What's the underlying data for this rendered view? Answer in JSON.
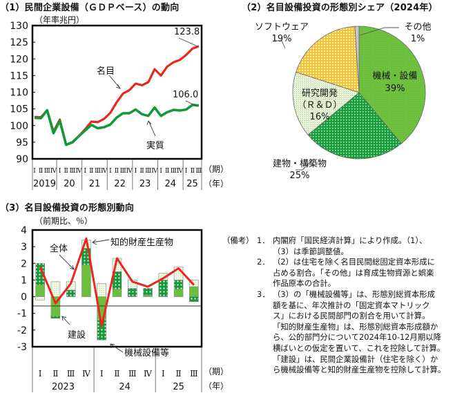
{
  "panel1": {
    "title": "（1）民間企業設備（ＧＤＰベース）の動向",
    "unit": "（年率兆円）",
    "period_label": "（期）",
    "year_label": "（年）",
    "quarter_ticks": "Ⅰ ⅡⅢⅣ",
    "labels": {
      "nominal": "名目",
      "real": "実質",
      "nominal_end": "123.8",
      "real_end": "106.0"
    }
  },
  "panel2": {
    "title": "（2）名目設備投資の形態別シェア（2024年）",
    "labels": {
      "machinery": "機械・設備",
      "machinery_pct": "39%",
      "construction": "建物・構築物",
      "construction_pct": "25%",
      "rd_1": "研究開発",
      "rd_2": "（Ｒ＆Ｄ）",
      "rd_pct": "16%",
      "software": "ソフトウェア",
      "software_pct": "19%",
      "other": "その他",
      "other_pct": "1%"
    }
  },
  "panel3": {
    "title": "（3）名目設備投資の形態別動向",
    "unit": "（前期比、％）",
    "period_label": "（期）",
    "year_label": "（年）",
    "labels": {
      "total": "全体",
      "ip": "知的財産生産物",
      "construction": "建設",
      "machinery": "機械設備等"
    }
  },
  "notes": {
    "lead": "（備考）",
    "items": [
      {
        "num": "1．",
        "lines": [
          "内閣府「国民経済計算」により作成。（1）、",
          "（3）は季節調整値。"
        ]
      },
      {
        "num": "2．",
        "lines": [
          "（2）は住宅を除く名目民間総固定資本形成に",
          "占める割合。「その他」は育成生物資源と娯楽",
          "作品原本の合計。"
        ]
      },
      {
        "num": "3．",
        "lines": [
          "（3）の「機械設備等」は、形態別総資本形成",
          "額を基に、年次推計の「固定資本マトリック",
          "ス」における民間部門の割合を用いて計算。",
          "「知的財産生産物」は、形態別総資本形成額か",
          "ら、公的部門分について2024年10-12月期以降",
          "横ばいとの仮定を置いて、これを控除して計算。",
          "「建設」は、民間企業設備計（住宅を除く）か",
          "ら機械設備等と知的財産生産物を控除して計算。"
        ]
      }
    ]
  },
  "colors": {
    "nominal": "#e8281e",
    "real": "#13993a",
    "machinery": "#6cbf3c",
    "construction": "#1a9e3d",
    "rd": "#dcefc6",
    "software": "#f7c22c",
    "other": "#c8c8c8",
    "total_line": "#e8281e"
  },
  "chart_data": [
    {
      "type": "line",
      "title": "（1）民間企業設備（ＧＤＰベース）の動向",
      "ylabel": "（年率兆円）",
      "xlabel": "（期）（年）",
      "ylim": [
        90,
        130
      ],
      "yticks": [
        90,
        95,
        100,
        105,
        110,
        115,
        120,
        125,
        130
      ],
      "x_groups": [
        "2019",
        "20",
        "21",
        "22",
        "23",
        "24",
        "25"
      ],
      "x": [
        "2019Q1",
        "2019Q2",
        "2019Q3",
        "2019Q4",
        "2020Q1",
        "2020Q2",
        "2020Q3",
        "2020Q4",
        "2021Q1",
        "2021Q2",
        "2021Q3",
        "2021Q4",
        "2022Q1",
        "2022Q2",
        "2022Q3",
        "2022Q4",
        "2023Q1",
        "2023Q2",
        "2023Q3",
        "2023Q4",
        "2024Q1",
        "2024Q2",
        "2024Q3",
        "2024Q4",
        "2025Q1",
        "2025Q2",
        "2025Q3"
      ],
      "series": [
        {
          "name": "名目",
          "values": [
            102.6,
            102.5,
            104.6,
            98.2,
            101.8,
            94.3,
            94.9,
            96.8,
            98.9,
            101.2,
            101.0,
            102.0,
            103.8,
            107.0,
            109.6,
            110.6,
            112.6,
            112.1,
            113.0,
            116.9,
            115.0,
            117.7,
            119.0,
            119.7,
            121.2,
            123.1,
            123.8
          ]
        },
        {
          "name": "実質",
          "values": [
            102.3,
            102.2,
            104.6,
            97.7,
            101.4,
            94.2,
            95.0,
            96.8,
            98.5,
            100.2,
            99.2,
            99.5,
            100.3,
            102.4,
            103.7,
            103.7,
            104.8,
            103.4,
            102.9,
            105.4,
            102.9,
            104.0,
            104.7,
            104.5,
            104.8,
            106.2,
            106.0
          ]
        }
      ],
      "annotations": [
        "123.8",
        "106.0"
      ]
    },
    {
      "type": "pie",
      "title": "（2）名目設備投資の形態別シェア（2024年）",
      "categories": [
        "機械・設備",
        "建物・構築物",
        "研究開発（Ｒ＆Ｄ）",
        "ソフトウェア",
        "その他"
      ],
      "values": [
        39,
        25,
        16,
        19,
        1
      ],
      "unit": "%"
    },
    {
      "type": "bar",
      "stacked": true,
      "title": "（3）名目設備投資の形態別動向",
      "ylabel": "（前期比、％）",
      "ylim": [
        -3,
        4
      ],
      "yticks": [
        -3,
        -2,
        -1,
        0,
        1,
        2,
        3,
        4
      ],
      "categories": [
        "2023Q1",
        "2023Q2",
        "2023Q3",
        "2023Q4",
        "2024Q1",
        "2024Q2",
        "2024Q3",
        "2024Q4",
        "2025Q1",
        "2025Q2",
        "2025Q3"
      ],
      "x_groups": [
        "2023",
        "24",
        "25"
      ],
      "series": [
        {
          "name": "建設",
          "values": [
            0.7,
            -1.15,
            0.0,
            1.9,
            -1.35,
            0.45,
            0.0,
            0.1,
            0.0,
            0.45,
            0.6
          ]
        },
        {
          "name": "機械設備等",
          "values": [
            1.3,
            -0.15,
            0.4,
            1.0,
            -1.25,
            1.05,
            0.5,
            0.4,
            1.0,
            0.55,
            -0.3
          ]
        },
        {
          "name": "知的財産生産物",
          "values": [
            -0.2,
            0.9,
            0.5,
            0.5,
            0.8,
            0.8,
            0.5,
            0.0,
            0.4,
            0.8,
            0.4
          ]
        },
        {
          "name": "全体",
          "type": "line",
          "values": [
            1.8,
            -0.4,
            0.8,
            3.5,
            -1.75,
            2.3,
            0.9,
            0.6,
            1.1,
            1.7,
            0.7
          ]
        }
      ]
    }
  ]
}
